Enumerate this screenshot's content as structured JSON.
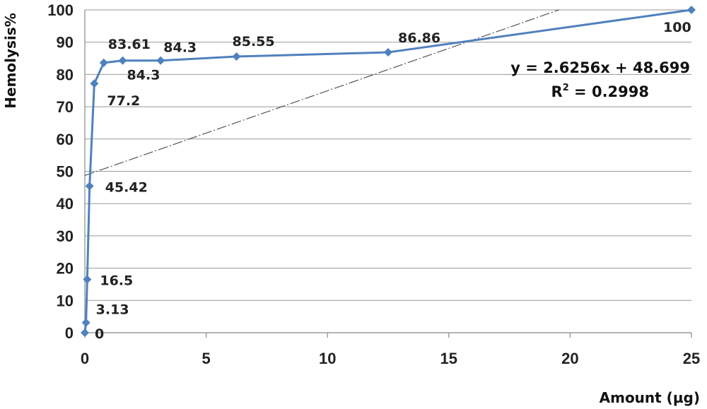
{
  "chart_data": {
    "type": "scatter",
    "xlabel": "Amount (µg)",
    "ylabel": "Hemolysis%",
    "xlim": [
      0,
      25
    ],
    "ylim": [
      0,
      100
    ],
    "xticks": [
      0,
      5,
      10,
      15,
      20,
      25
    ],
    "yticks": [
      0,
      10,
      20,
      30,
      40,
      50,
      60,
      70,
      80,
      90,
      100
    ],
    "grid": "horizontal",
    "series": [
      {
        "x": [
          0,
          0.049,
          0.098,
          0.195,
          0.39,
          0.78,
          1.56,
          3.125,
          6.25,
          12.5,
          25
        ],
        "y": [
          0,
          3.13,
          16.5,
          45.42,
          77.2,
          83.61,
          84.3,
          84.3,
          85.55,
          86.86,
          100
        ],
        "labels": [
          "0",
          "3.13",
          "16.5",
          "45.42",
          "77.2",
          "83.61",
          "84.3",
          "84.3",
          "85.55",
          "86.86",
          "100"
        ],
        "color": "#4f81bd"
      }
    ],
    "trendline": {
      "type": "linear",
      "slope": 2.6256,
      "intercept": 48.699,
      "equation": "y = 2.6256x + 48.699",
      "r2_prefix": "R",
      "r2_sup": "2",
      "r2_rest": " = 0.2998",
      "color": "#555555"
    }
  }
}
